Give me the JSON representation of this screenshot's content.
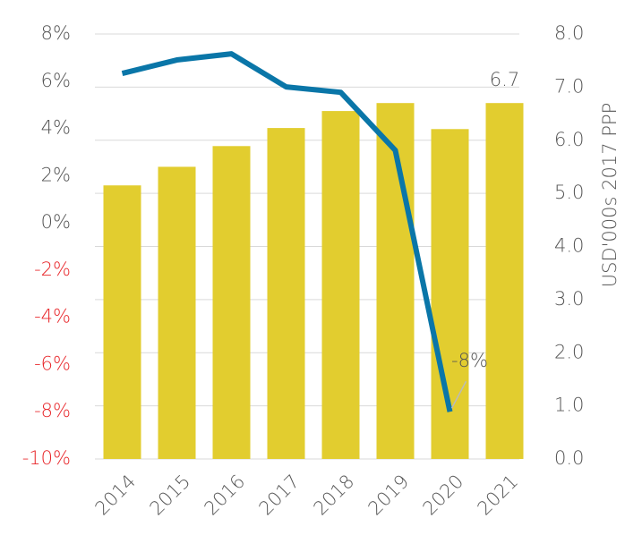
{
  "chart_data": {
    "type": "bar-line",
    "categories": [
      "2014",
      "2015",
      "2016",
      "2017",
      "2018",
      "2019",
      "2020",
      "2021"
    ],
    "series": [
      {
        "type": "bar",
        "axis": "y2",
        "color": "#e2cd2f",
        "values": [
          5.15,
          5.5,
          5.89,
          6.23,
          6.55,
          6.7,
          6.21,
          6.7
        ],
        "value_labels": [
          null,
          null,
          null,
          null,
          null,
          null,
          null,
          "6.7"
        ]
      },
      {
        "type": "line",
        "axis": "y",
        "color": "#0a76a8",
        "values": [
          6.33,
          6.9,
          7.16,
          5.76,
          5.53,
          3.07,
          -8,
          null
        ],
        "value_labels": [
          null,
          null,
          null,
          null,
          null,
          null,
          "-8%",
          null
        ]
      }
    ],
    "ylim": [
      -10,
      8
    ],
    "yticks": [
      {
        "value": 8,
        "label": "8%"
      },
      {
        "value": 6,
        "label": "6%"
      },
      {
        "value": 4,
        "label": "4%"
      },
      {
        "value": 2,
        "label": "2%"
      },
      {
        "value": 0,
        "label": "0%"
      },
      {
        "value": -2,
        "label": "-2%"
      },
      {
        "value": -4,
        "label": "-4%"
      },
      {
        "value": -6,
        "label": "-6%"
      },
      {
        "value": -8,
        "label": "-8%"
      },
      {
        "value": -10,
        "label": "-10%"
      }
    ],
    "y2lim": [
      0,
      8
    ],
    "y2ticks": [
      {
        "value": 8,
        "label": "8.0"
      },
      {
        "value": 7,
        "label": "7.0"
      },
      {
        "value": 6,
        "label": "6.0"
      },
      {
        "value": 5,
        "label": "5.0"
      },
      {
        "value": 4,
        "label": "4.0"
      },
      {
        "value": 3,
        "label": "3.0"
      },
      {
        "value": 2,
        "label": "2.0"
      },
      {
        "value": 1,
        "label": "1.0"
      },
      {
        "value": 0,
        "label": "0.0"
      }
    ],
    "y2label": "USD'000s 2017 PPP",
    "negative_tick_color": "#e8262a",
    "grid": true
  }
}
